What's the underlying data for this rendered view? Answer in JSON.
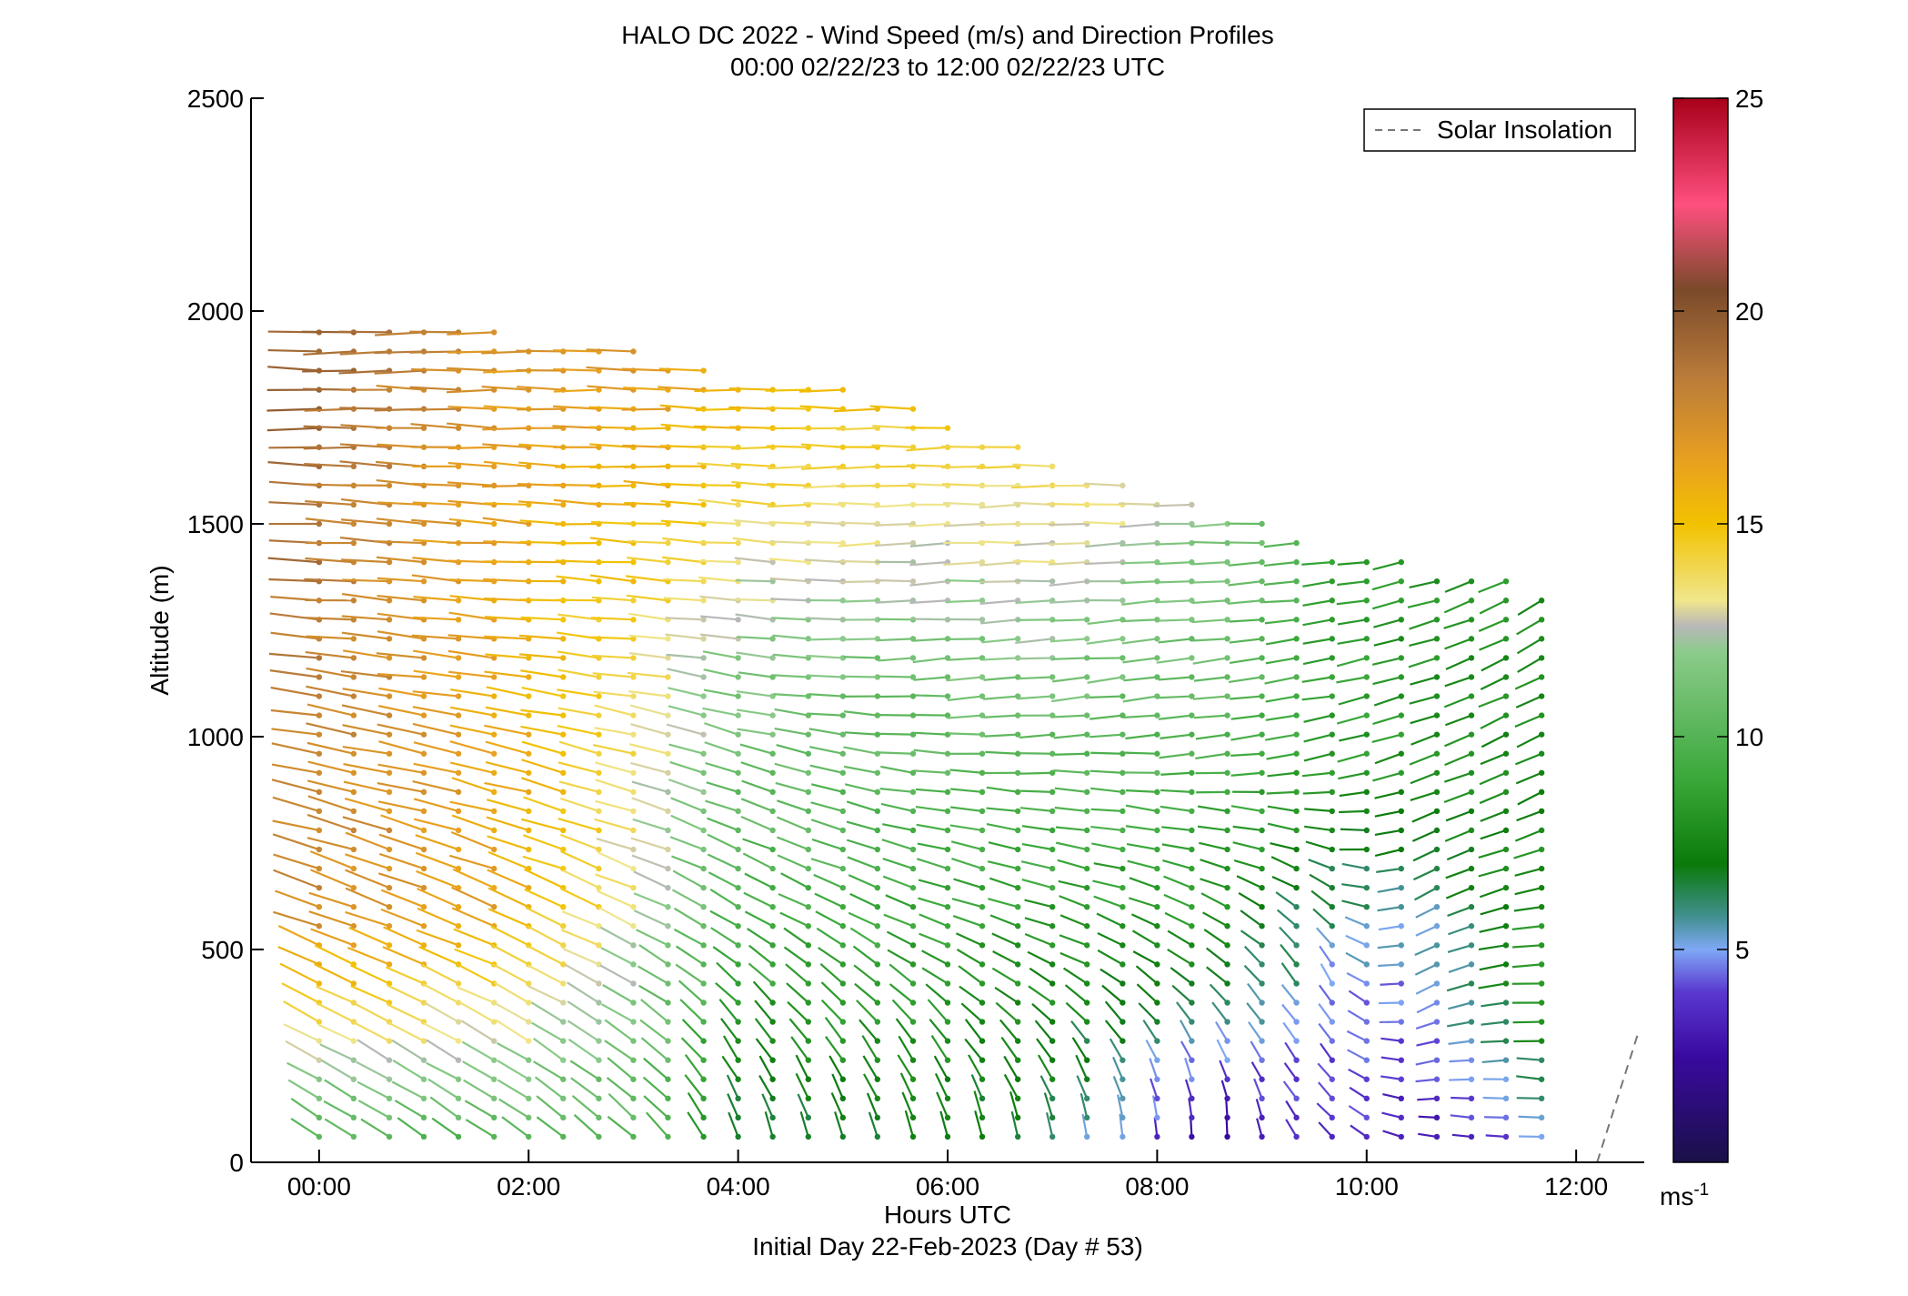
{
  "chart_data": {
    "type": "wind barb / arrow profile",
    "title": "HALO DC 2022 - Wind Speed (m/s) and Direction Profiles",
    "subtitle": "00:00 02/22/23 to 12:00 02/22/23  UTC",
    "xlabel": "Hours UTC",
    "xlabel2": "Initial Day 22-Feb-2023 (Day # 53)",
    "ylabel": "Altitude (m)",
    "xlim": [
      -0.65,
      12.65
    ],
    "ylim": [
      0,
      2500
    ],
    "x_ticks": [
      0,
      2,
      4,
      6,
      8,
      10,
      12
    ],
    "x_tick_labels": [
      "00:00",
      "02:00",
      "04:00",
      "06:00",
      "08:00",
      "10:00",
      "12:00"
    ],
    "y_ticks": [
      0,
      500,
      1000,
      1500,
      2000,
      2500
    ],
    "y_tick_labels": [
      "0",
      "500",
      "1000",
      "1500",
      "2000",
      "2500"
    ],
    "legend": {
      "entries": [
        "Solar Insolation"
      ],
      "location": "top-right",
      "style": "dashed gray"
    },
    "colorbar": {
      "range": [
        0,
        25
      ],
      "ticks": [
        5,
        10,
        15,
        20,
        25
      ],
      "tick_labels": [
        "5",
        "10",
        "15",
        "20",
        "25"
      ],
      "unit_label": "ms",
      "unit_exponent": "-1",
      "colors": [
        "#1a1048",
        "#3a0aa0",
        "#5a38d0",
        "#7fa8f5",
        "#3f8f8c",
        "#0a7a0a",
        "#39a839",
        "#8ccb8c",
        "#b8b8b8",
        "#f0e68c",
        "#f2c200",
        "#e8a020",
        "#b87a3a",
        "#7a4a2a",
        "#ff4f7f",
        "#a8001a"
      ],
      "color_stops": [
        0,
        2.5,
        4,
        5,
        5.8,
        7,
        9,
        12,
        12.6,
        13.2,
        15,
        16.5,
        18.5,
        20.5,
        22.5,
        25
      ]
    },
    "solar_insolation": {
      "x": [
        12.2,
        12.6
      ],
      "y": [
        0,
        310
      ]
    },
    "arrow_x_hours": [
      0,
      0.33,
      0.67,
      1.0,
      1.33,
      1.67,
      2.0,
      2.33,
      2.67,
      3.0,
      3.33,
      3.67,
      4.0,
      4.33,
      4.67,
      5.0,
      5.33,
      5.67,
      6.0,
      6.33,
      6.67,
      7.0,
      7.33,
      7.67,
      8.0,
      8.33,
      8.67,
      9.0,
      9.33,
      9.67,
      10.0,
      10.33,
      10.67,
      11.0,
      11.33,
      11.67
    ],
    "profiles": [
      {
        "t": 0.0,
        "top": 1950,
        "low_speed": 9.5,
        "low_dir": -35,
        "mid_speed": 17.5,
        "mid_dir": -20,
        "up_speed": 18.5,
        "up_dir": -4,
        "top_speed": 19.5,
        "top_dir": 0
      },
      {
        "t": 1.8,
        "top": 1950,
        "low_speed": 9.5,
        "low_dir": -35,
        "mid_speed": 16.5,
        "mid_dir": -22,
        "up_speed": 16,
        "up_dir": -5,
        "top_speed": 17,
        "top_dir": 0
      },
      {
        "t": 3.2,
        "top": 1900,
        "low_speed": 9.5,
        "low_dir": -45,
        "mid_speed": 12.5,
        "mid_dir": -25,
        "up_speed": 14,
        "up_dir": -5,
        "top_speed": 17,
        "top_dir": 0
      },
      {
        "t": 4.0,
        "top": 1850,
        "low_speed": 6.0,
        "low_dir": -75,
        "mid_speed": 9.5,
        "mid_dir": -30,
        "up_speed": 12,
        "up_dir": -8,
        "top_speed": 16,
        "top_dir": 0
      },
      {
        "t": 5.5,
        "top": 1800,
        "low_speed": 7.0,
        "low_dir": -80,
        "mid_speed": 9.0,
        "mid_dir": -25,
        "up_speed": 11,
        "up_dir": 3,
        "top_speed": 15,
        "top_dir": 0
      },
      {
        "t": 7.0,
        "top": 1650,
        "low_speed": 6.5,
        "low_dir": -85,
        "mid_speed": 8.0,
        "mid_dir": -20,
        "up_speed": 11,
        "up_dir": 5,
        "top_speed": 14,
        "top_dir": 0
      },
      {
        "t": 8.6,
        "top": 1550,
        "low_speed": 1.5,
        "low_dir": -100,
        "mid_speed": 7.5,
        "mid_dir": -35,
        "up_speed": 10,
        "up_dir": 8,
        "top_speed": 12,
        "top_dir": 0
      },
      {
        "t": 9.7,
        "top": 1450,
        "low_speed": 3.5,
        "low_dir": -40,
        "mid_speed": 5.0,
        "mid_dir": -60,
        "up_speed": 8.5,
        "up_dir": 12,
        "top_speed": 9,
        "top_dir": 5
      },
      {
        "t": 10.6,
        "top": 1400,
        "low_speed": 3.0,
        "low_dir": -15,
        "mid_speed": 4.5,
        "mid_dir": 30,
        "up_speed": 8,
        "up_dir": 20,
        "top_speed": 8,
        "top_dir": 15
      },
      {
        "t": 11.7,
        "top": 1350,
        "low_speed": 4.0,
        "low_dir": -5,
        "mid_speed": 8.5,
        "mid_dir": -3,
        "up_speed": 7.5,
        "up_dir": 25,
        "top_speed": 8,
        "top_dir": 30
      }
    ]
  }
}
